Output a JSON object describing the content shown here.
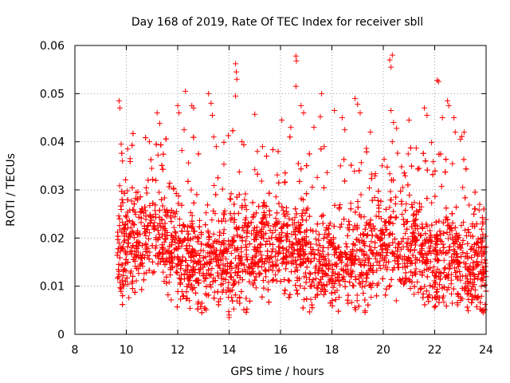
{
  "chart_data": {
    "type": "scatter",
    "title": "Day 168 of 2019, Rate Of TEC Index for receiver sbll",
    "xlabel": "GPS time / hours",
    "ylabel": "ROTI / TECUs",
    "xlim": [
      8,
      24
    ],
    "ylim": [
      0,
      0.06
    ],
    "xticks": [
      8,
      10,
      12,
      14,
      16,
      18,
      20,
      22,
      24
    ],
    "yticks": [
      0,
      0.01,
      0.02,
      0.03,
      0.04,
      0.05,
      0.06
    ],
    "xtick_labels": [
      "8",
      "10",
      "12",
      "14",
      "16",
      "18",
      "20",
      "22",
      "24"
    ],
    "ytick_labels": [
      "0",
      "0.01",
      "0.02",
      "0.03",
      "0.04",
      "0.05",
      "0.06"
    ],
    "grid": true,
    "marker": "+",
    "color": "#ff0000",
    "series": [
      {
        "name": "ROTI",
        "points": [
          [
            9.72,
            0.0485
          ],
          [
            9.75,
            0.047
          ],
          [
            9.8,
            0.0395
          ],
          [
            9.85,
            0.036
          ],
          [
            10.05,
            0.0385
          ],
          [
            10.15,
            0.0365
          ],
          [
            10.9,
            0.04
          ],
          [
            11.2,
            0.046
          ],
          [
            11.3,
            0.0438
          ],
          [
            12.0,
            0.0475
          ],
          [
            12.05,
            0.046
          ],
          [
            12.25,
            0.0425
          ],
          [
            12.3,
            0.0505
          ],
          [
            12.55,
            0.0475
          ],
          [
            12.62,
            0.047
          ],
          [
            13.2,
            0.05
          ],
          [
            13.3,
            0.048
          ],
          [
            13.35,
            0.0455
          ],
          [
            13.4,
            0.041
          ],
          [
            13.5,
            0.039
          ],
          [
            14.0,
            0.004
          ],
          [
            14.0,
            0.0035
          ],
          [
            14.25,
            0.0562
          ],
          [
            14.28,
            0.0545
          ],
          [
            14.3,
            0.053
          ],
          [
            14.25,
            0.0495
          ],
          [
            14.5,
            0.04
          ],
          [
            15.0,
            0.0457
          ],
          [
            15.1,
            0.038
          ],
          [
            15.3,
            0.039
          ],
          [
            16.05,
            0.0445
          ],
          [
            16.4,
            0.043
          ],
          [
            16.6,
            0.0578
          ],
          [
            16.62,
            0.0568
          ],
          [
            16.6,
            0.0515
          ],
          [
            16.8,
            0.0475
          ],
          [
            16.9,
            0.046
          ],
          [
            17.3,
            0.043
          ],
          [
            17.55,
            0.0452
          ],
          [
            17.6,
            0.05
          ],
          [
            17.7,
            0.039
          ],
          [
            18.1,
            0.0465
          ],
          [
            18.4,
            0.045
          ],
          [
            18.9,
            0.049
          ],
          [
            19.0,
            0.0478
          ],
          [
            19.1,
            0.046
          ],
          [
            19.5,
            0.042
          ],
          [
            20.25,
            0.057
          ],
          [
            20.3,
            0.0555
          ],
          [
            20.35,
            0.058
          ],
          [
            20.3,
            0.0465
          ],
          [
            20.4,
            0.044
          ],
          [
            20.35,
            0.04
          ],
          [
            21.0,
            0.0445
          ],
          [
            21.6,
            0.047
          ],
          [
            21.7,
            0.0455
          ],
          [
            22.1,
            0.0528
          ],
          [
            22.15,
            0.0525
          ],
          [
            22.3,
            0.045
          ],
          [
            22.5,
            0.0485
          ],
          [
            22.55,
            0.0475
          ],
          [
            22.75,
            0.045
          ],
          [
            22.8,
            0.042
          ],
          [
            23.0,
            0.0405
          ],
          [
            23.3,
            0.009
          ],
          [
            23.75,
            0.027
          ],
          [
            23.85,
            0.005
          ],
          [
            23.9,
            0.0045
          ],
          [
            24.0,
            0.012
          ]
        ]
      }
    ]
  }
}
